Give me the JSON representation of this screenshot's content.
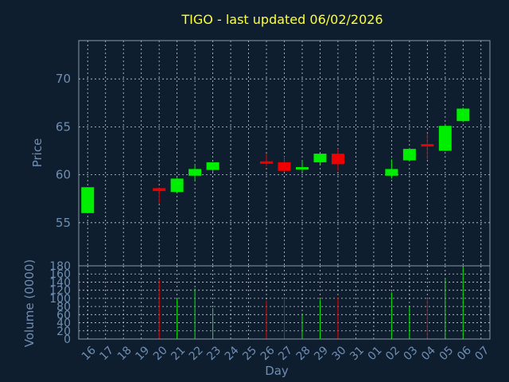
{
  "chart_data": {
    "type": "candlestick",
    "title": "TIGO - last updated 06/02/2026",
    "ylabel": "Price",
    "volume_ylabel": "Volume (0000)",
    "xlabel": "Day",
    "ylim": [
      50.5,
      74
    ],
    "volume_ylim": [
      0,
      180
    ],
    "yticks": [
      "55",
      "60",
      "65",
      "70"
    ],
    "volume_yticks": [
      "0",
      "20",
      "40",
      "60",
      "80",
      "100",
      "120",
      "140",
      "160",
      "180"
    ],
    "x_ticks": [
      "16",
      "17",
      "18",
      "19",
      "20",
      "21",
      "22",
      "23",
      "24",
      "25",
      "26",
      "27",
      "28",
      "29",
      "30",
      "31",
      "01",
      "02",
      "03",
      "04",
      "05",
      "06",
      "07"
    ],
    "grid": true,
    "colors": {
      "up": "#00ee00",
      "down": "#ee0000",
      "background": "#0f1e2e",
      "title": "#ffff33",
      "axis_text": "#6f8eb3"
    },
    "candles": [
      {
        "day": "16",
        "open": 56.0,
        "high": 58.7,
        "low": 56.0,
        "close": 58.7,
        "volume": 0
      },
      {
        "day": "20",
        "open": 58.6,
        "high": 58.6,
        "low": 57.0,
        "close": 58.3,
        "volume": 145
      },
      {
        "day": "21",
        "open": 58.2,
        "high": 59.7,
        "low": 58.1,
        "close": 59.6,
        "volume": 98
      },
      {
        "day": "22",
        "open": 59.9,
        "high": 61.1,
        "low": 59.4,
        "close": 60.6,
        "volume": 124
      },
      {
        "day": "23",
        "open": 60.5,
        "high": 61.3,
        "low": 60.3,
        "close": 61.3,
        "volume": 76
      },
      {
        "day": "26",
        "open": 61.4,
        "high": 62.2,
        "low": 60.9,
        "close": 61.2,
        "volume": 95
      },
      {
        "day": "27",
        "open": 61.3,
        "high": 61.9,
        "low": 60.3,
        "close": 60.4,
        "volume": 100
      },
      {
        "day": "28",
        "open": 60.6,
        "high": 61.5,
        "low": 60.3,
        "close": 60.8,
        "volume": 62
      },
      {
        "day": "29",
        "open": 61.3,
        "high": 62.2,
        "low": 61.1,
        "close": 62.2,
        "volume": 97
      },
      {
        "day": "30",
        "open": 62.2,
        "high": 62.7,
        "low": 60.4,
        "close": 61.1,
        "volume": 102
      },
      {
        "day": "02",
        "open": 59.9,
        "high": 61.6,
        "low": 59.6,
        "close": 60.6,
        "volume": 115
      },
      {
        "day": "03",
        "open": 61.5,
        "high": 62.8,
        "low": 61.4,
        "close": 62.7,
        "volume": 80
      },
      {
        "day": "04",
        "open": 63.2,
        "high": 64.3,
        "low": 61.6,
        "close": 63.1,
        "volume": 100
      },
      {
        "day": "05",
        "open": 62.5,
        "high": 65.3,
        "low": 62.5,
        "close": 65.1,
        "volume": 150
      },
      {
        "day": "06",
        "open": 65.6,
        "high": 67.0,
        "low": 65.5,
        "close": 66.9,
        "volume": 178
      }
    ]
  }
}
